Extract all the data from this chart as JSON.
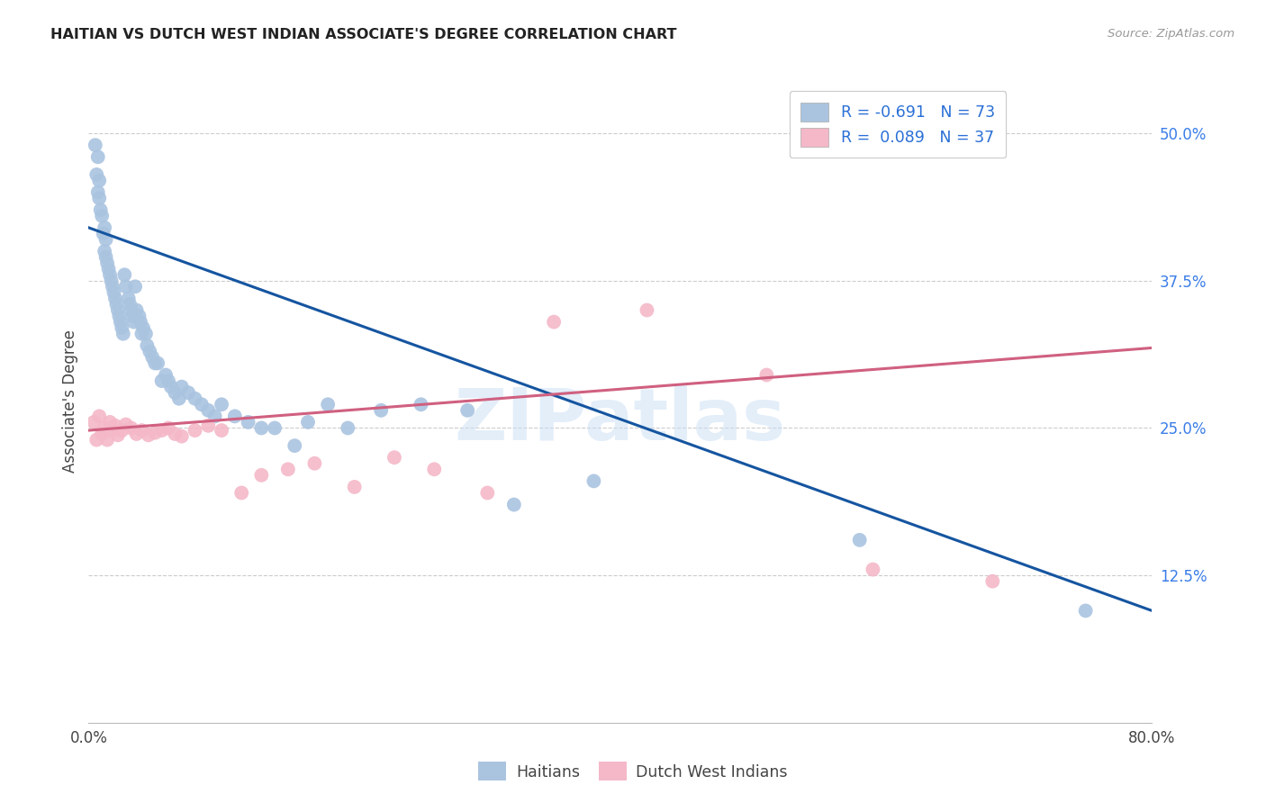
{
  "title": "HAITIAN VS DUTCH WEST INDIAN ASSOCIATE'S DEGREE CORRELATION CHART",
  "source": "Source: ZipAtlas.com",
  "ylabel": "Associate's Degree",
  "yticks": [
    "12.5%",
    "25.0%",
    "37.5%",
    "50.0%"
  ],
  "ytick_vals": [
    0.125,
    0.25,
    0.375,
    0.5
  ],
  "xlim": [
    0.0,
    0.8
  ],
  "ylim": [
    0.0,
    0.545
  ],
  "watermark": "ZIPatlas",
  "legend_blue_label": "R = -0.691   N = 73",
  "legend_pink_label": "R =  0.089   N = 37",
  "blue_color": "#aac4e0",
  "pink_color": "#f4b8c8",
  "line_blue": "#1555a0",
  "line_pink": "#d06080",
  "haitians_x": [
    0.005,
    0.006,
    0.007,
    0.007,
    0.008,
    0.008,
    0.009,
    0.01,
    0.011,
    0.012,
    0.012,
    0.013,
    0.013,
    0.014,
    0.015,
    0.016,
    0.017,
    0.018,
    0.019,
    0.02,
    0.021,
    0.022,
    0.023,
    0.024,
    0.025,
    0.026,
    0.027,
    0.028,
    0.03,
    0.031,
    0.032,
    0.033,
    0.034,
    0.035,
    0.036,
    0.038,
    0.039,
    0.04,
    0.041,
    0.043,
    0.044,
    0.046,
    0.048,
    0.05,
    0.052,
    0.055,
    0.058,
    0.06,
    0.062,
    0.065,
    0.068,
    0.07,
    0.075,
    0.08,
    0.085,
    0.09,
    0.095,
    0.1,
    0.11,
    0.12,
    0.13,
    0.14,
    0.155,
    0.165,
    0.18,
    0.195,
    0.22,
    0.25,
    0.285,
    0.32,
    0.38,
    0.58,
    0.75
  ],
  "haitians_y": [
    0.49,
    0.465,
    0.45,
    0.48,
    0.445,
    0.46,
    0.435,
    0.43,
    0.415,
    0.4,
    0.42,
    0.395,
    0.41,
    0.39,
    0.385,
    0.38,
    0.375,
    0.37,
    0.365,
    0.36,
    0.355,
    0.35,
    0.345,
    0.34,
    0.335,
    0.33,
    0.38,
    0.37,
    0.36,
    0.355,
    0.35,
    0.345,
    0.34,
    0.37,
    0.35,
    0.345,
    0.34,
    0.33,
    0.335,
    0.33,
    0.32,
    0.315,
    0.31,
    0.305,
    0.305,
    0.29,
    0.295,
    0.29,
    0.285,
    0.28,
    0.275,
    0.285,
    0.28,
    0.275,
    0.27,
    0.265,
    0.26,
    0.27,
    0.26,
    0.255,
    0.25,
    0.25,
    0.235,
    0.255,
    0.27,
    0.25,
    0.265,
    0.27,
    0.265,
    0.185,
    0.205,
    0.155,
    0.095
  ],
  "dutch_x": [
    0.004,
    0.006,
    0.008,
    0.01,
    0.012,
    0.014,
    0.016,
    0.018,
    0.02,
    0.022,
    0.025,
    0.028,
    0.032,
    0.036,
    0.04,
    0.045,
    0.05,
    0.055,
    0.06,
    0.065,
    0.07,
    0.08,
    0.09,
    0.1,
    0.115,
    0.13,
    0.15,
    0.17,
    0.2,
    0.23,
    0.26,
    0.3,
    0.35,
    0.42,
    0.51,
    0.59,
    0.68
  ],
  "dutch_y": [
    0.255,
    0.24,
    0.26,
    0.245,
    0.25,
    0.24,
    0.255,
    0.248,
    0.252,
    0.244,
    0.248,
    0.253,
    0.25,
    0.245,
    0.248,
    0.244,
    0.246,
    0.248,
    0.25,
    0.245,
    0.243,
    0.248,
    0.252,
    0.248,
    0.195,
    0.21,
    0.215,
    0.22,
    0.2,
    0.225,
    0.215,
    0.195,
    0.34,
    0.35,
    0.295,
    0.13,
    0.12
  ],
  "blue_trendline_x": [
    0.0,
    0.8
  ],
  "blue_trendline_y": [
    0.42,
    0.095
  ],
  "pink_trendline_x": [
    0.0,
    0.8
  ],
  "pink_trendline_y": [
    0.248,
    0.318
  ]
}
